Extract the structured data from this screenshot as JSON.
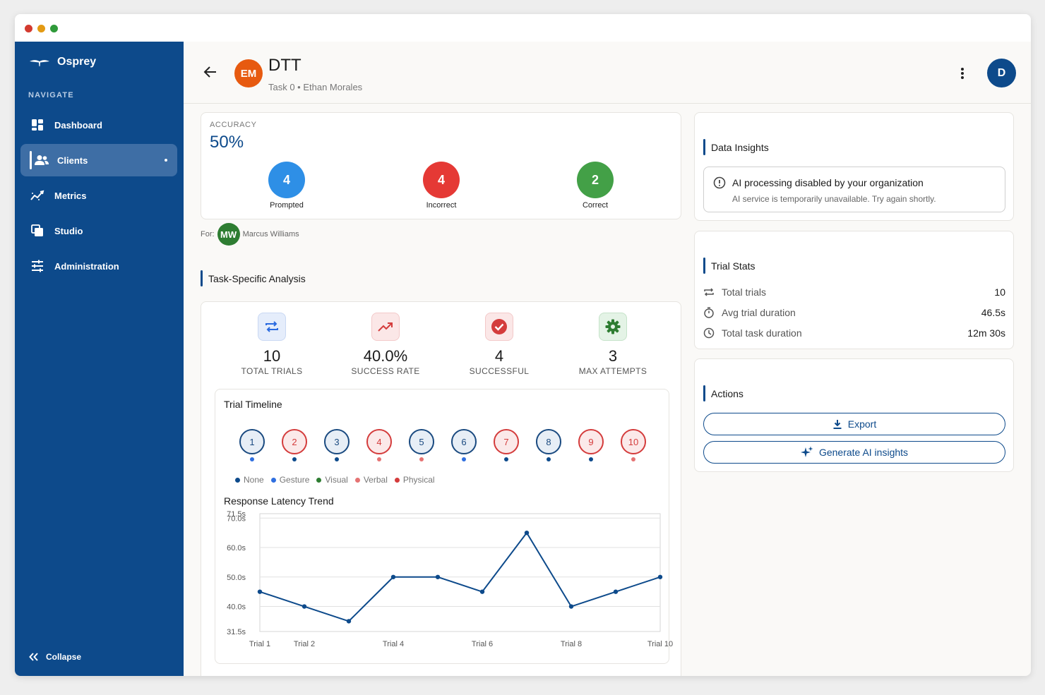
{
  "sidebar": {
    "brand": "Osprey",
    "nav_heading": "NAVIGATE",
    "items": [
      {
        "label": "Dashboard",
        "icon": "dashboard-icon"
      },
      {
        "label": "Clients",
        "icon": "clients-icon",
        "active": true
      },
      {
        "label": "Metrics",
        "icon": "metrics-icon"
      },
      {
        "label": "Studio",
        "icon": "studio-icon"
      },
      {
        "label": "Administration",
        "icon": "administration-icon"
      }
    ],
    "collapse_label": "Collapse"
  },
  "header": {
    "avatar_initials": "EM",
    "title": "DTT",
    "subtitle": "Task 0 • Ethan Morales",
    "user_initial": "D"
  },
  "accuracy": {
    "label": "ACCURACY",
    "value": "50%",
    "stats": [
      {
        "value": "4",
        "label": "Prompted",
        "color": "#2e8fe6"
      },
      {
        "value": "4",
        "label": "Incorrect",
        "color": "#e53935"
      },
      {
        "value": "2",
        "label": "Correct",
        "color": "#43a047"
      }
    ]
  },
  "for_row": {
    "prefix": "For:",
    "initials": "MW",
    "name": "Marcus Williams"
  },
  "task_analysis": {
    "title": "Task-Specific Analysis",
    "metrics": [
      {
        "value": "10",
        "label": "TOTAL TRIALS",
        "icon": "repeat-icon",
        "color": "#2b6be0",
        "bg": "#e5edfb"
      },
      {
        "value": "40.0%",
        "label": "SUCCESS RATE",
        "icon": "trending-up-icon",
        "color": "#d43c3c",
        "bg": "#fbe7e7"
      },
      {
        "value": "4",
        "label": "SUCCESSFUL",
        "icon": "check-circle-icon",
        "color": "#d43c3c",
        "bg": "#fbe7e7"
      },
      {
        "value": "3",
        "label": "MAX ATTEMPTS",
        "icon": "gear-icon",
        "color": "#2e7d32",
        "bg": "#e4f3e6"
      }
    ]
  },
  "trial_timeline": {
    "title": "Trial Timeline",
    "trials": [
      {
        "n": "1",
        "result": "blue",
        "prompt": "Gesture"
      },
      {
        "n": "2",
        "result": "red",
        "prompt": "None"
      },
      {
        "n": "3",
        "result": "blue",
        "prompt": "None"
      },
      {
        "n": "4",
        "result": "red",
        "prompt": "Verbal"
      },
      {
        "n": "5",
        "result": "blue",
        "prompt": "Verbal"
      },
      {
        "n": "6",
        "result": "blue",
        "prompt": "Gesture"
      },
      {
        "n": "7",
        "result": "red",
        "prompt": "None"
      },
      {
        "n": "8",
        "result": "blue",
        "prompt": "None"
      },
      {
        "n": "9",
        "result": "red",
        "prompt": "None"
      },
      {
        "n": "10",
        "result": "red",
        "prompt": "Verbal"
      }
    ],
    "legend": [
      {
        "label": "None",
        "color": "#0d4a8b"
      },
      {
        "label": "Gesture",
        "color": "#2f6fe0"
      },
      {
        "label": "Visual",
        "color": "#2e7d32"
      },
      {
        "label": "Verbal",
        "color": "#e57373"
      },
      {
        "label": "Physical",
        "color": "#d43c3c"
      }
    ]
  },
  "chart_data": {
    "type": "line",
    "title": "Response Latency Trend",
    "x": [
      "Trial 1",
      "Trial 2",
      "Trial 3",
      "Trial 4",
      "Trial 5",
      "Trial 6",
      "Trial 7",
      "Trial 8",
      "Trial 9",
      "Trial 10"
    ],
    "x_tick_labels": [
      "Trial 1",
      "Trial 2",
      "Trial 4",
      "Trial 6",
      "Trial 8",
      "Trial 10"
    ],
    "series": [
      {
        "values": [
          45,
          40,
          35,
          50,
          50,
          45,
          65,
          40,
          45,
          50
        ],
        "color": "#0d4a8b"
      }
    ],
    "ylim": [
      31.5,
      71.5
    ],
    "y_ticks": [
      31.5,
      40,
      50,
      60,
      70,
      71.5
    ],
    "y_tick_labels": [
      "31.5s",
      "40.0s",
      "50.0s",
      "60.0s",
      "70.0s",
      "71.5s"
    ],
    "grid": true
  },
  "data_insights": {
    "title": "Data Insights",
    "alert_title": "AI processing disabled by your organization",
    "alert_sub": "AI service is temporarily unavailable. Try again shortly."
  },
  "trial_stats": {
    "title": "Trial Stats",
    "rows": [
      {
        "label": "Total trials",
        "value": "10",
        "icon": "repeat-icon"
      },
      {
        "label": "Avg trial duration",
        "value": "46.5s",
        "icon": "stopwatch-icon"
      },
      {
        "label": "Total task duration",
        "value": "12m 30s",
        "icon": "clock-icon"
      }
    ]
  },
  "actions": {
    "title": "Actions",
    "export_label": "Export",
    "insights_label": "Generate AI insights"
  }
}
